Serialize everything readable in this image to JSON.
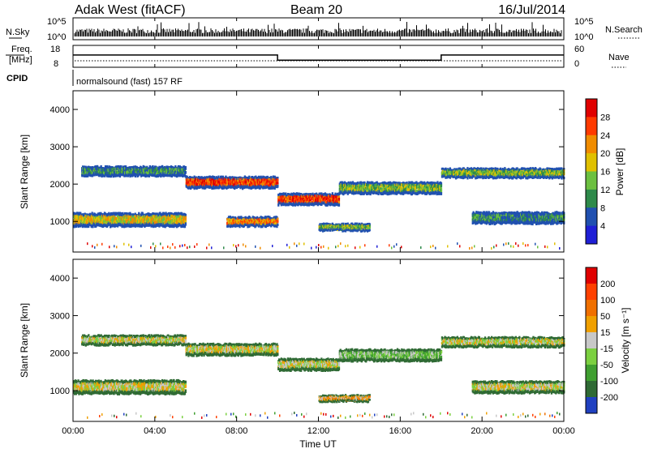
{
  "header": {
    "station": "Adak West (fitACF)",
    "beam": "Beam 20",
    "date": "16/Jul/2014"
  },
  "sky_panel": {
    "left_label": "N.Sky",
    "right_label": "N.Search",
    "left_ticks": [
      "10^5",
      "10^0"
    ],
    "right_ticks": [
      "10^5",
      "10^0"
    ]
  },
  "freq_panel": {
    "left_label_1": "Freq.",
    "left_label_2": "[MHz]",
    "right_label": "Nave",
    "left_ticks": [
      "18",
      "8"
    ],
    "right_ticks": [
      "60",
      "0"
    ]
  },
  "cpid": {
    "label": "CPID",
    "program": "normalsound (fast) 157 RF"
  },
  "colors": {
    "power_scale": [
      "#1f1fd6",
      "#2050b0",
      "#2e8a4a",
      "#6cc040",
      "#e0c000",
      "#f08c00",
      "#ff3a00",
      "#e00000"
    ],
    "velocity_scale": [
      "#2040c0",
      "#2f6a34",
      "#3f9f30",
      "#7bd040",
      "#c8c8c8",
      "#f0a000",
      "#f07000",
      "#ff4000",
      "#e00000"
    ]
  },
  "chart_data": [
    {
      "type": "heatmap",
      "name": "power-panel",
      "ylabel": "Slant Range [km]",
      "colorbar_label": "Power [dB]",
      "colorbar_ticks": [
        "28",
        "24",
        "20",
        "16",
        "12",
        "8",
        "4"
      ],
      "x_range_hours": [
        0,
        24
      ],
      "ylim": [
        180,
        4500
      ],
      "y_ticks": [
        "4000",
        "3000",
        "2000",
        "1000"
      ],
      "bands": [
        {
          "t0": 0.0,
          "t1": 5.5,
          "r_center": 1050,
          "r_width": 350,
          "level": 4
        },
        {
          "t0": 0.4,
          "t1": 5.5,
          "r_center": 2350,
          "r_width": 250,
          "level": 2
        },
        {
          "t0": 5.5,
          "t1": 10.0,
          "r_center": 2050,
          "r_width": 300,
          "level": 6
        },
        {
          "t0": 7.5,
          "t1": 10.0,
          "r_center": 1000,
          "r_width": 250,
          "level": 5
        },
        {
          "t0": 10.0,
          "t1": 13.0,
          "r_center": 1600,
          "r_width": 300,
          "level": 6
        },
        {
          "t0": 12.0,
          "t1": 14.5,
          "r_center": 850,
          "r_width": 180,
          "level": 3
        },
        {
          "t0": 13.0,
          "t1": 18.0,
          "r_center": 1900,
          "r_width": 300,
          "level": 3
        },
        {
          "t0": 18.0,
          "t1": 24.0,
          "r_center": 2300,
          "r_width": 250,
          "level": 3
        },
        {
          "t0": 19.5,
          "t1": 24.0,
          "r_center": 1100,
          "r_width": 300,
          "level": 2
        }
      ]
    },
    {
      "type": "heatmap",
      "name": "velocity-panel",
      "ylabel": "Slant Range [km]",
      "xlabel": "Time UT",
      "colorbar_label": "Velocity [m s⁻¹]",
      "colorbar_ticks": [
        "200",
        "100",
        "50",
        "15",
        "-15",
        "-50",
        "-100",
        "-200"
      ],
      "x_range_hours": [
        0,
        24
      ],
      "x_ticks": [
        "00:00",
        "04:00",
        "08:00",
        "12:00",
        "16:00",
        "20:00",
        "00:00"
      ],
      "ylim": [
        180,
        4500
      ],
      "y_ticks": [
        "4000",
        "3000",
        "2000",
        "1000"
      ],
      "bands": [
        {
          "t0": 0.0,
          "t1": 5.5,
          "r_center": 1100,
          "r_width": 350,
          "level": 4
        },
        {
          "t0": 0.4,
          "t1": 5.5,
          "r_center": 2350,
          "r_width": 250,
          "level": 4
        },
        {
          "t0": 5.5,
          "t1": 10.0,
          "r_center": 2100,
          "r_width": 300,
          "level": 4
        },
        {
          "t0": 10.0,
          "t1": 13.0,
          "r_center": 1700,
          "r_width": 300,
          "level": 4
        },
        {
          "t0": 12.0,
          "t1": 14.5,
          "r_center": 800,
          "r_width": 160,
          "level": 5
        },
        {
          "t0": 13.0,
          "t1": 18.0,
          "r_center": 1950,
          "r_width": 300,
          "level": 3
        },
        {
          "t0": 18.0,
          "t1": 24.0,
          "r_center": 2300,
          "r_width": 250,
          "level": 4
        },
        {
          "t0": 19.5,
          "t1": 24.0,
          "r_center": 1100,
          "r_width": 300,
          "level": 4
        }
      ]
    }
  ],
  "frequency_series": {
    "t": [
      0,
      10.0,
      10.0,
      18.0,
      18.0,
      24
    ],
    "freq_mhz": [
      13.5,
      13.5,
      10.6,
      10.6,
      13.5,
      13.5
    ]
  }
}
